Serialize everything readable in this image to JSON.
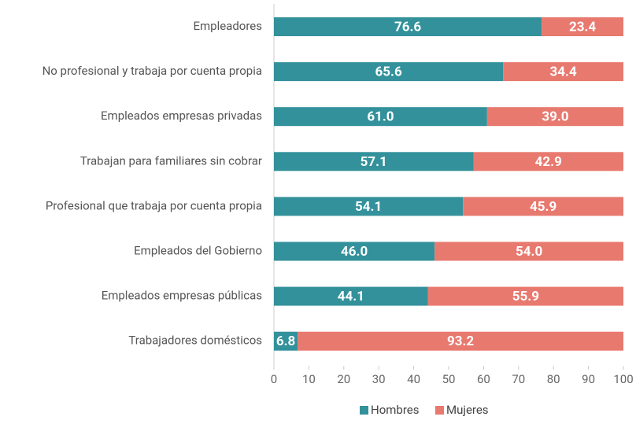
{
  "chart_data": {
    "type": "stacked_bar_horizontal",
    "categories": [
      "Empleadores",
      "No profesional y trabaja por cuenta propia",
      "Empleados empresas privadas",
      "Trabajan para familiares sin cobrar",
      "Profesional que trabaja por cuenta propia",
      "Empleados del Gobierno",
      "Empleados empresas públicas",
      "Trabajadores domésticos"
    ],
    "series": [
      {
        "name": "Hombres",
        "color": "#33919b",
        "values": [
          76.6,
          65.6,
          61,
          57.1,
          54.1,
          46,
          44.1,
          6.8
        ],
        "value_labels": [
          "76.6",
          "65.6",
          "61.0",
          "57.1",
          "54.1",
          "46.0",
          "44.1",
          "6.8"
        ]
      },
      {
        "name": "Mujeres",
        "color": "#e8796f",
        "values": [
          23.4,
          34.4,
          39,
          42.9,
          45.9,
          54,
          55.9,
          93.2
        ],
        "value_labels": [
          "23.4",
          "34.4",
          "39.0",
          "42.9",
          "45.9",
          "54.0",
          "55.9",
          "93.2"
        ]
      }
    ],
    "xlim": [
      0,
      100
    ],
    "xticks": [
      0,
      10,
      20,
      30,
      40,
      50,
      60,
      70,
      80,
      90,
      100
    ],
    "legend": "bottom"
  }
}
